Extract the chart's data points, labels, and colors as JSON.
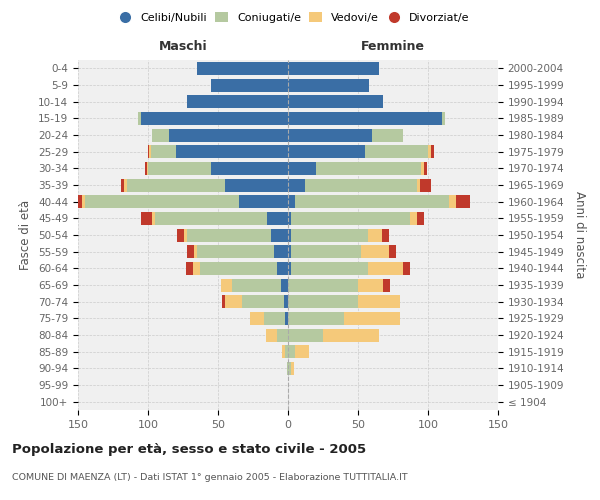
{
  "age_groups": [
    "100+",
    "95-99",
    "90-94",
    "85-89",
    "80-84",
    "75-79",
    "70-74",
    "65-69",
    "60-64",
    "55-59",
    "50-54",
    "45-49",
    "40-44",
    "35-39",
    "30-34",
    "25-29",
    "20-24",
    "15-19",
    "10-14",
    "5-9",
    "0-4"
  ],
  "birth_years": [
    "≤ 1904",
    "1905-1909",
    "1910-1914",
    "1915-1919",
    "1920-1924",
    "1925-1929",
    "1930-1934",
    "1935-1939",
    "1940-1944",
    "1945-1949",
    "1950-1954",
    "1955-1959",
    "1960-1964",
    "1965-1969",
    "1970-1974",
    "1975-1979",
    "1980-1984",
    "1985-1989",
    "1990-1994",
    "1995-1999",
    "2000-2004"
  ],
  "colors": {
    "celibe": "#3a6ea5",
    "coniugato": "#b5c9a0",
    "vedovo": "#f5c97a",
    "divorziato": "#c0392b"
  },
  "maschi": {
    "celibe": [
      0,
      0,
      0,
      0,
      0,
      2,
      3,
      5,
      8,
      10,
      12,
      15,
      35,
      45,
      55,
      80,
      85,
      105,
      72,
      55,
      65
    ],
    "coniugato": [
      0,
      0,
      1,
      2,
      8,
      15,
      30,
      35,
      55,
      55,
      60,
      80,
      110,
      70,
      45,
      18,
      12,
      2,
      0,
      0,
      0
    ],
    "vedovo": [
      0,
      0,
      0,
      2,
      8,
      10,
      12,
      8,
      5,
      2,
      2,
      2,
      2,
      2,
      1,
      1,
      0,
      0,
      0,
      0,
      0
    ],
    "divorziato": [
      0,
      0,
      0,
      0,
      0,
      0,
      2,
      0,
      5,
      5,
      5,
      8,
      10,
      2,
      1,
      1,
      0,
      0,
      0,
      0,
      0
    ]
  },
  "femmine": {
    "nubile": [
      0,
      0,
      0,
      0,
      0,
      0,
      0,
      0,
      2,
      2,
      2,
      2,
      5,
      12,
      20,
      55,
      60,
      110,
      68,
      58,
      65
    ],
    "coniugata": [
      0,
      0,
      2,
      5,
      25,
      40,
      50,
      50,
      55,
      50,
      55,
      85,
      110,
      80,
      75,
      45,
      22,
      2,
      0,
      0,
      0
    ],
    "vedova": [
      0,
      0,
      2,
      10,
      40,
      40,
      30,
      18,
      25,
      20,
      10,
      5,
      5,
      2,
      2,
      2,
      0,
      0,
      0,
      0,
      0
    ],
    "divorziata": [
      0,
      0,
      0,
      0,
      0,
      0,
      0,
      5,
      5,
      5,
      5,
      5,
      10,
      8,
      2,
      2,
      0,
      0,
      0,
      0,
      0
    ]
  },
  "xlim": 150,
  "title": "Popolazione per età, sesso e stato civile - 2005",
  "subtitle": "COMUNE DI MAENZA (LT) - Dati ISTAT 1° gennaio 2005 - Elaborazione TUTTITALIA.IT",
  "ylabel_left": "Fasce di età",
  "ylabel_right": "Anni di nascita",
  "xlabel_left": "Maschi",
  "xlabel_right": "Femmine",
  "bg_color": "#ffffff",
  "plot_bg": "#f0f0f0"
}
